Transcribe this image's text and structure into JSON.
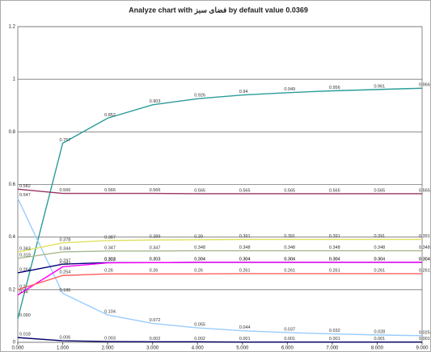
{
  "chart_data": {
    "type": "line",
    "title": "Analyze chart with فضای سبز by default value  0.0369",
    "x": [
      0,
      1,
      2,
      3,
      4,
      5,
      6,
      7,
      8,
      9
    ],
    "xlim": [
      0,
      9
    ],
    "xticks": [
      {
        "value": 0,
        "label": "0.000"
      },
      {
        "value": 1,
        "label": "1.000"
      },
      {
        "value": 2,
        "label": "2.000"
      },
      {
        "value": 3,
        "label": "3.000"
      },
      {
        "value": 4,
        "label": "4.000"
      },
      {
        "value": 5,
        "label": "5.000"
      },
      {
        "value": 6,
        "label": "6.000"
      },
      {
        "value": 7,
        "label": "7.000"
      },
      {
        "value": 8,
        "label": "8.000"
      },
      {
        "value": 9,
        "label": "9.000"
      }
    ],
    "ylim": [
      0,
      1.2
    ],
    "yticks": [
      0,
      0.2,
      0.4,
      0.6,
      0.8,
      1,
      1.2
    ],
    "grid": true,
    "series": [
      {
        "color": "#2a9d9a",
        "values": [
          0.09,
          0.757,
          0.852,
          0.903,
          0.926,
          0.94,
          0.949,
          0.956,
          0.961,
          0.966
        ],
        "value_labels": [
          "0.090",
          "0.757",
          "0.852",
          "0.903",
          "0.926",
          "0.94",
          "0.949",
          "0.956",
          "0.961",
          "0.966"
        ]
      },
      {
        "color": "#993366",
        "values": [
          0.582,
          0.566,
          0.566,
          0.566,
          0.565,
          0.565,
          0.565,
          0.565,
          0.565,
          0.565
        ],
        "value_labels": [
          "0.582",
          "0.566",
          "0.566",
          "0.566",
          "0.565",
          "0.565",
          "0.565",
          "0.565",
          "0.565",
          "0.565"
        ]
      },
      {
        "color": "#99ccff",
        "values": [
          0.547,
          0.186,
          0.104,
          0.072,
          0.055,
          0.044,
          0.037,
          0.032,
          0.028,
          0.025
        ],
        "value_labels": [
          "0.547",
          "0.186",
          "0.104",
          "0.072",
          "0.055",
          "0.044",
          "0.037",
          "0.032",
          "0.028",
          "0.025"
        ]
      },
      {
        "color": "#e0e060",
        "values": [
          0.343,
          0.378,
          0.387,
          0.389,
          0.39,
          0.391,
          0.391,
          0.391,
          0.391,
          0.391
        ],
        "value_labels": [
          "0.343",
          "0.378",
          "0.387",
          "0.389",
          "0.39",
          "0.391",
          "0.391",
          "0.391",
          "0.391",
          "0.391"
        ]
      },
      {
        "color": "#a8b890",
        "values": [
          0.319,
          0.344,
          0.347,
          0.347,
          0.348,
          0.348,
          0.348,
          0.348,
          0.348,
          0.348
        ],
        "value_labels": [
          "0.319",
          "0.344",
          "0.347",
          "0.347",
          "0.348",
          "0.348",
          "0.348",
          "0.348",
          "0.348",
          "0.348"
        ]
      },
      {
        "color": "#000080",
        "values": [
          0.264,
          0.297,
          0.303,
          0.303,
          0.304,
          0.304,
          0.304,
          0.304,
          0.304,
          0.304
        ],
        "value_labels": [
          "0.264",
          "0.297",
          "0.303",
          "0.303",
          "0.304",
          "0.304",
          "0.304",
          "0.304",
          "0.304",
          "0.304"
        ]
      },
      {
        "color": "#ff00ff",
        "values": [
          0.18,
          0.287,
          0.302,
          0.303,
          0.304,
          0.304,
          0.304,
          0.304,
          0.304,
          0.304
        ],
        "value_labels": [
          "0.18",
          "0.287",
          "0.302",
          "0.303",
          "0.304",
          "0.304",
          "0.304",
          "0.304",
          "0.304",
          "0.304"
        ]
      },
      {
        "color": "#ff6060",
        "values": [
          0.2,
          0.254,
          0.26,
          0.26,
          0.26,
          0.261,
          0.261,
          0.261,
          0.261,
          0.261
        ],
        "value_labels": [
          "0.2",
          "0.254",
          "0.26",
          "0.26",
          "0.26",
          "0.261",
          "0.261",
          "0.261",
          "0.261",
          "0.261"
        ]
      },
      {
        "color": "#000066",
        "values": [
          0.018,
          0.006,
          0.003,
          0.002,
          0.002,
          0.001,
          0.001,
          0.001,
          0.001,
          0.001
        ],
        "value_labels": [
          "0.018",
          "0.006",
          "0.003",
          "0.002",
          "0.002",
          "0.001",
          "0.001",
          "0.001",
          "0.001",
          "0.001"
        ]
      }
    ]
  }
}
